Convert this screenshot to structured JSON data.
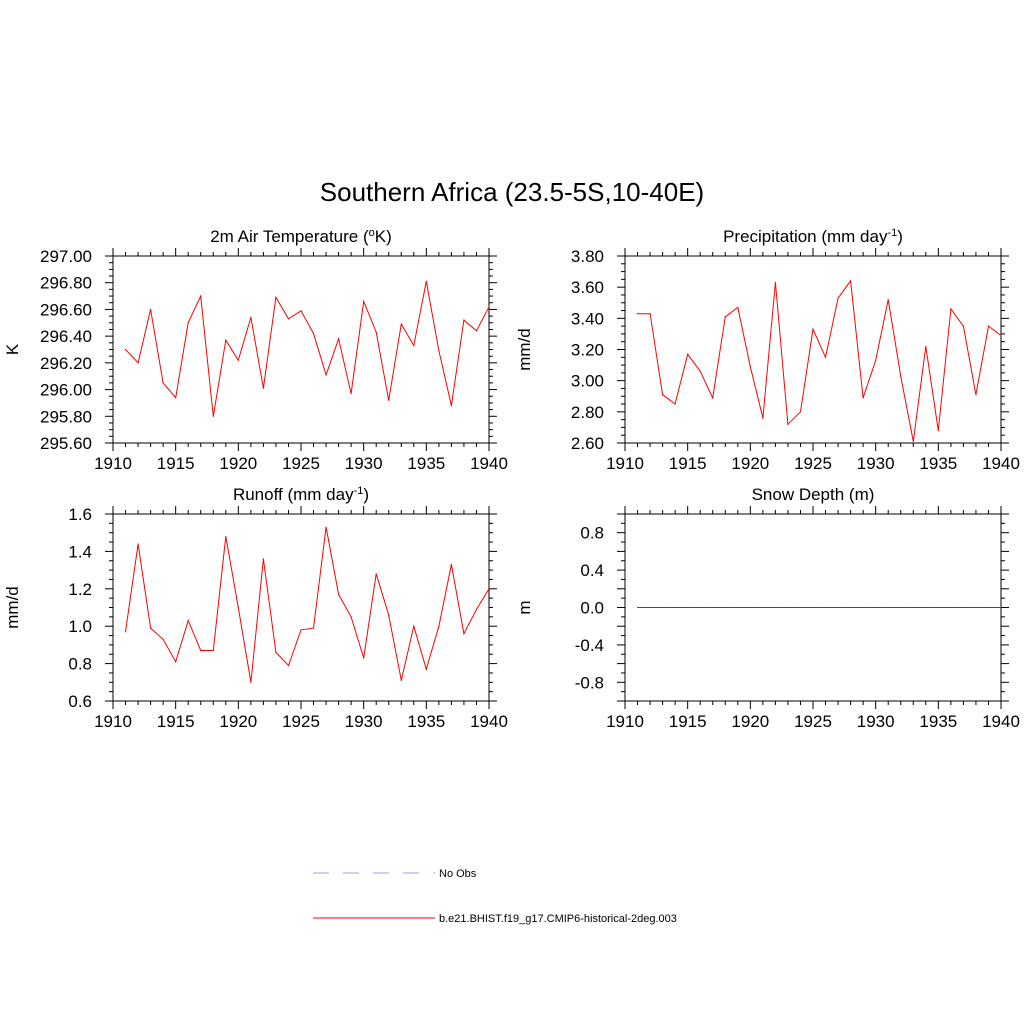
{
  "figure": {
    "title": "Southern Africa (23.5-5S,10-40E)"
  },
  "legend": [
    {
      "label": "No Obs",
      "color": "#9999ff",
      "dashed": true
    },
    {
      "label": "b.e21.BHIST.f19_g17.CMIP6-historical-2deg.003",
      "color": "#ff0000",
      "dashed": false
    }
  ],
  "colors": {
    "model": "#ff0000",
    "obs": "#9999ff",
    "axis": "#000000"
  },
  "chart_data": [
    {
      "type": "line",
      "title": "2m Air Temperature (",
      "title_sup": "o",
      "title_after": "K)",
      "xlabel": "",
      "ylabel": "K",
      "xlim": [
        1910,
        1940
      ],
      "ylim": [
        295.6,
        297.0
      ],
      "xticks": [
        1910,
        1915,
        1920,
        1925,
        1930,
        1935,
        1940
      ],
      "yticks": [
        295.6,
        295.8,
        296.0,
        296.2,
        296.4,
        296.6,
        296.8,
        297.0
      ],
      "yticklabels": [
        "295.60",
        "295.80",
        "296.00",
        "296.20",
        "296.40",
        "296.60",
        "296.80",
        "297.00"
      ],
      "ymajor": 0.2,
      "yminor": 0.05,
      "x": [
        1911,
        1912,
        1913,
        1914,
        1915,
        1916,
        1917,
        1918,
        1919,
        1920,
        1921,
        1922,
        1923,
        1924,
        1925,
        1926,
        1927,
        1928,
        1929,
        1930,
        1931,
        1932,
        1933,
        1934,
        1935,
        1936,
        1937,
        1938,
        1939,
        1940
      ],
      "series": [
        {
          "name": "b.e21.BHIST.f19_g17.CMIP6-historical-2deg.003",
          "values": [
            296.3,
            296.2,
            296.6,
            296.05,
            295.94,
            296.5,
            296.7,
            295.8,
            296.37,
            296.22,
            296.54,
            296.01,
            296.69,
            296.53,
            296.59,
            296.42,
            296.11,
            296.38,
            295.97,
            296.66,
            296.43,
            295.92,
            296.49,
            296.33,
            296.81,
            296.29,
            295.88,
            296.52,
            296.44,
            296.62
          ]
        }
      ]
    },
    {
      "type": "line",
      "title": "Precipitation (mm day",
      "title_sup": "-1",
      "title_after": ")",
      "xlabel": "",
      "ylabel": "mm/d",
      "xlim": [
        1910,
        1940
      ],
      "ylim": [
        2.6,
        3.8
      ],
      "xticks": [
        1910,
        1915,
        1920,
        1925,
        1930,
        1935,
        1940
      ],
      "yticks": [
        2.6,
        2.8,
        3.0,
        3.2,
        3.4,
        3.6,
        3.8
      ],
      "yticklabels": [
        "2.60",
        "2.80",
        "3.00",
        "3.20",
        "3.40",
        "3.60",
        "3.80"
      ],
      "ymajor": 0.2,
      "yminor": 0.05,
      "x": [
        1911,
        1912,
        1913,
        1914,
        1915,
        1916,
        1917,
        1918,
        1919,
        1920,
        1921,
        1922,
        1923,
        1924,
        1925,
        1926,
        1927,
        1928,
        1929,
        1930,
        1931,
        1932,
        1933,
        1934,
        1935,
        1936,
        1937,
        1938,
        1939,
        1940
      ],
      "series": [
        {
          "name": "b.e21.BHIST.f19_g17.CMIP6-historical-2deg.003",
          "values": [
            3.43,
            3.43,
            2.91,
            2.85,
            3.17,
            3.06,
            2.89,
            3.41,
            3.47,
            3.09,
            2.76,
            3.63,
            2.72,
            2.8,
            3.33,
            3.15,
            3.53,
            3.64,
            2.89,
            3.13,
            3.52,
            3.03,
            2.61,
            3.22,
            2.68,
            3.46,
            3.35,
            2.91,
            3.35,
            3.29
          ]
        }
      ]
    },
    {
      "type": "line",
      "title": "Runoff (mm day",
      "title_sup": "-1",
      "title_after": ")",
      "xlabel": "",
      "ylabel": "mm/d",
      "xlim": [
        1910,
        1940
      ],
      "ylim": [
        0.6,
        1.6
      ],
      "xticks": [
        1910,
        1915,
        1920,
        1925,
        1930,
        1935,
        1940
      ],
      "yticks": [
        0.6,
        0.8,
        1.0,
        1.2,
        1.4,
        1.6
      ],
      "yticklabels": [
        "0.6",
        "0.8",
        "1.0",
        "1.2",
        "1.4",
        "1.6"
      ],
      "ymajor": 0.2,
      "yminor": 0.05,
      "x": [
        1911,
        1912,
        1913,
        1914,
        1915,
        1916,
        1917,
        1918,
        1919,
        1920,
        1921,
        1922,
        1923,
        1924,
        1925,
        1926,
        1927,
        1928,
        1929,
        1930,
        1931,
        1932,
        1933,
        1934,
        1935,
        1936,
        1937,
        1938,
        1939,
        1940
      ],
      "series": [
        {
          "name": "b.e21.BHIST.f19_g17.CMIP6-historical-2deg.003",
          "values": [
            0.97,
            1.44,
            0.99,
            0.93,
            0.81,
            1.03,
            0.87,
            0.87,
            1.48,
            1.1,
            0.7,
            1.36,
            0.86,
            0.79,
            0.98,
            0.99,
            1.53,
            1.17,
            1.05,
            0.83,
            1.28,
            1.06,
            0.71,
            1.0,
            0.77,
            1.0,
            1.33,
            0.96,
            1.09,
            1.2
          ]
        }
      ]
    },
    {
      "type": "line",
      "title": "Snow Depth (m)",
      "title_sup": "",
      "title_after": "",
      "xlabel": "",
      "ylabel": "m",
      "xlim": [
        1910,
        1940
      ],
      "ylim": [
        -1.0,
        1.0
      ],
      "xticks": [
        1910,
        1915,
        1920,
        1925,
        1930,
        1935,
        1940
      ],
      "yticks": [
        -0.8,
        -0.4,
        0.0,
        0.4,
        0.8
      ],
      "yticklabels": [
        "-0.8",
        "-0.4",
        "0.0",
        "0.4",
        "0.8"
      ],
      "ymajor": 0.2,
      "yminor": 0.1,
      "x": [
        1911,
        1912,
        1913,
        1914,
        1915,
        1916,
        1917,
        1918,
        1919,
        1920,
        1921,
        1922,
        1923,
        1924,
        1925,
        1926,
        1927,
        1928,
        1929,
        1930,
        1931,
        1932,
        1933,
        1934,
        1935,
        1936,
        1937,
        1938,
        1939,
        1940
      ],
      "series": [
        {
          "name": "b.e21.BHIST.f19_g17.CMIP6-historical-2deg.003",
          "values": [
            0,
            0,
            0,
            0,
            0,
            0,
            0,
            0,
            0,
            0,
            0,
            0,
            0,
            0,
            0,
            0,
            0,
            0,
            0,
            0,
            0,
            0,
            0,
            0,
            0,
            0,
            0,
            0,
            0,
            0
          ]
        }
      ]
    }
  ]
}
